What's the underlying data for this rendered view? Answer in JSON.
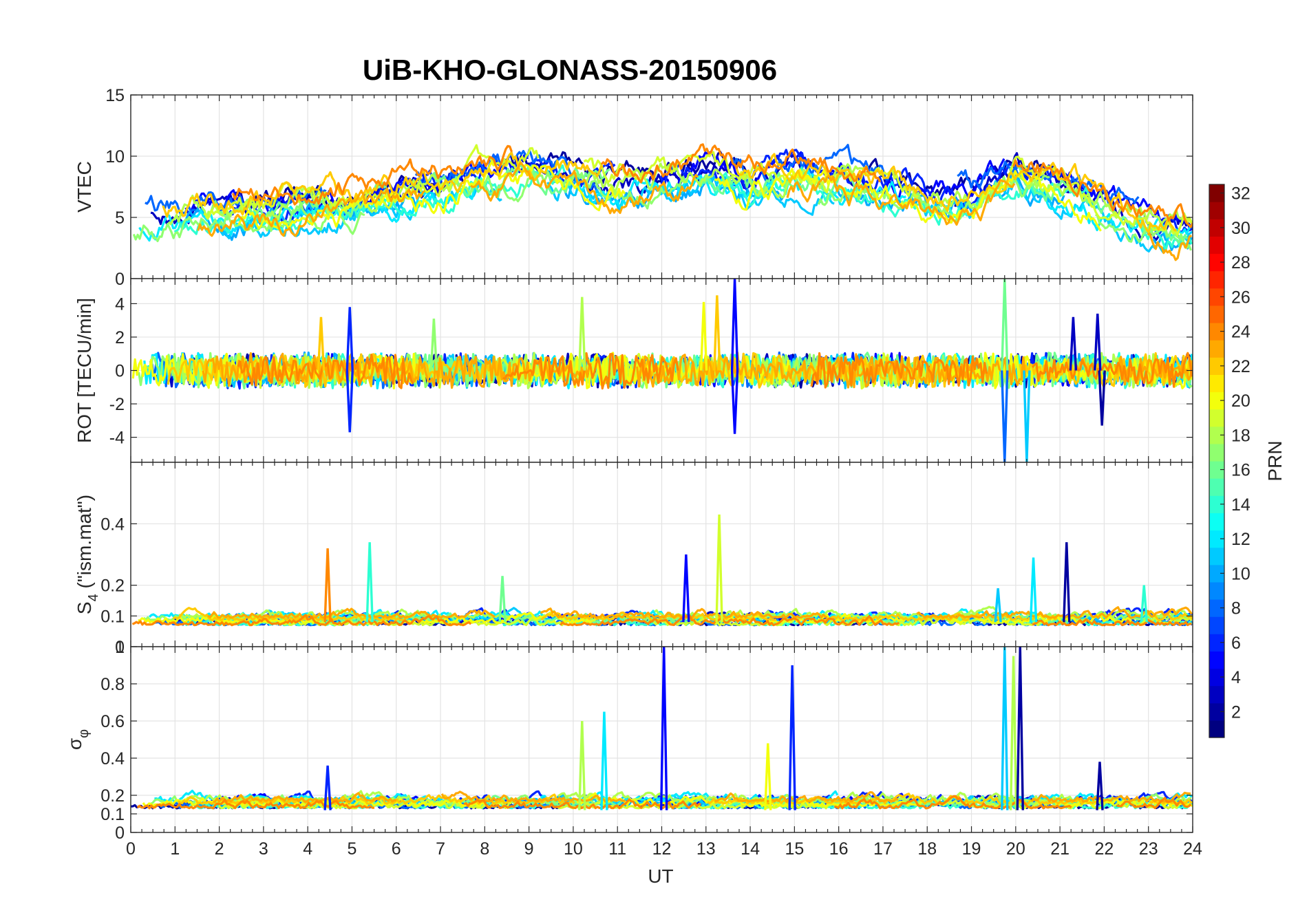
{
  "chart_data": {
    "type": "line",
    "title": "UiB-KHO-GLONASS-20150906",
    "xlabel": "UT",
    "x_range": [
      0,
      24
    ],
    "x_ticks": [
      0,
      1,
      2,
      3,
      4,
      5,
      6,
      7,
      8,
      9,
      10,
      11,
      12,
      13,
      14,
      15,
      16,
      17,
      18,
      19,
      20,
      21,
      22,
      23,
      24
    ],
    "x_tick_labels": [
      "0",
      "1",
      "2",
      "3",
      "4",
      "5",
      "6",
      "7",
      "8",
      "9",
      "10",
      "11",
      "12",
      "13",
      "14",
      "15",
      "16",
      "17",
      "18",
      "19",
      "20",
      "21",
      "22",
      "23",
      "24"
    ],
    "grid": true,
    "panels": [
      {
        "id": "vtec",
        "ylabel": "VTEC",
        "ylim": [
          0,
          15
        ],
        "y_ticks": [
          0,
          5,
          10,
          15
        ],
        "y_tick_labels": [
          "0",
          "5",
          "10",
          "15"
        ],
        "trend": [
          [
            0,
            5
          ],
          [
            1,
            5
          ],
          [
            2,
            5.5
          ],
          [
            3,
            5.5
          ],
          [
            4,
            6
          ],
          [
            5,
            6
          ],
          [
            6,
            7
          ],
          [
            7,
            7.5
          ],
          [
            8,
            8.5
          ],
          [
            9,
            9
          ],
          [
            10,
            8.5
          ],
          [
            11,
            7.5
          ],
          [
            12,
            8
          ],
          [
            13,
            8.5
          ],
          [
            14,
            8
          ],
          [
            15,
            8.5
          ],
          [
            16,
            8
          ],
          [
            17,
            7.5
          ],
          [
            18,
            6.5
          ],
          [
            19,
            6.5
          ],
          [
            20,
            9
          ],
          [
            21,
            7.5
          ],
          [
            22,
            6
          ],
          [
            23,
            4.5
          ],
          [
            24,
            4
          ]
        ],
        "noise": 1.1
      },
      {
        "id": "rot",
        "ylabel": "ROT [TECU/min]",
        "ylim": [
          -5.5,
          5.5
        ],
        "y_ticks": [
          -4,
          -2,
          0,
          2,
          4
        ],
        "y_tick_labels": [
          "-4",
          "-2",
          "0",
          "2",
          "4"
        ],
        "trend": [
          [
            0,
            0
          ],
          [
            24,
            0
          ]
        ],
        "noise": 0.45
      },
      {
        "id": "s4",
        "ylabel": "S4 (\"ism.mat\")",
        "ylabel_main": "S",
        "ylabel_sub": "4",
        "ylabel_rest": " (\"ism.mat\")",
        "ylim": [
          0,
          0.6
        ],
        "y_ticks": [
          0,
          0.1,
          0.2,
          0.4
        ],
        "y_tick_labels": [
          "0",
          "0.1",
          "0.2",
          "0.4"
        ],
        "trend": [
          [
            0,
            0.07
          ],
          [
            24,
            0.07
          ]
        ],
        "noise": 0.02
      },
      {
        "id": "sigma",
        "ylabel": "σφ",
        "ylabel_main": "σ",
        "ylabel_sub": "φ",
        "ylim": [
          0,
          1
        ],
        "y_ticks": [
          0,
          0.1,
          0.2,
          0.4,
          0.6,
          0.8,
          1
        ],
        "y_tick_labels": [
          "0",
          "0.1",
          "0.2",
          "0.4",
          "0.6",
          "0.8",
          "1"
        ],
        "trend": [
          [
            0,
            0.13
          ],
          [
            24,
            0.13
          ]
        ],
        "noise": 0.035
      }
    ],
    "spikes": [
      {
        "panel": "rot",
        "x": 4.95,
        "y": 3.8,
        "prn": 6
      },
      {
        "panel": "rot",
        "x": 4.95,
        "y": -3.7,
        "prn": 6
      },
      {
        "panel": "rot",
        "x": 4.3,
        "y": 3.2,
        "prn": 22
      },
      {
        "panel": "rot",
        "x": 6.85,
        "y": 3.1,
        "prn": 17
      },
      {
        "panel": "rot",
        "x": 10.2,
        "y": 4.4,
        "prn": 18
      },
      {
        "panel": "rot",
        "x": 12.95,
        "y": 4.1,
        "prn": 20
      },
      {
        "panel": "rot",
        "x": 13.25,
        "y": 4.5,
        "prn": 22
      },
      {
        "panel": "rot",
        "x": 13.65,
        "y": 5.5,
        "prn": 5
      },
      {
        "panel": "rot",
        "x": 13.65,
        "y": -3.8,
        "prn": 5
      },
      {
        "panel": "rot",
        "x": 19.75,
        "y": 5.5,
        "prn": 16
      },
      {
        "panel": "rot",
        "x": 19.75,
        "y": -5.5,
        "prn": 8
      },
      {
        "panel": "rot",
        "x": 20.25,
        "y": -5.5,
        "prn": 11
      },
      {
        "panel": "rot",
        "x": 21.3,
        "y": 3.2,
        "prn": 3
      },
      {
        "panel": "rot",
        "x": 21.85,
        "y": 3.4,
        "prn": 3
      },
      {
        "panel": "rot",
        "x": 21.95,
        "y": -3.3,
        "prn": 2
      },
      {
        "panel": "s4",
        "x": 4.45,
        "y": 0.32,
        "prn": 24
      },
      {
        "panel": "s4",
        "x": 5.4,
        "y": 0.34,
        "prn": 14
      },
      {
        "panel": "s4",
        "x": 8.4,
        "y": 0.23,
        "prn": 16
      },
      {
        "panel": "s4",
        "x": 12.55,
        "y": 0.3,
        "prn": 5
      },
      {
        "panel": "s4",
        "x": 13.3,
        "y": 0.43,
        "prn": 19
      },
      {
        "panel": "s4",
        "x": 20.4,
        "y": 0.29,
        "prn": 12
      },
      {
        "panel": "s4",
        "x": 21.15,
        "y": 0.34,
        "prn": 2
      },
      {
        "panel": "s4",
        "x": 19.6,
        "y": 0.19,
        "prn": 11
      },
      {
        "panel": "s4",
        "x": 22.9,
        "y": 0.2,
        "prn": 14
      },
      {
        "panel": "sigma",
        "x": 4.45,
        "y": 0.36,
        "prn": 6
      },
      {
        "panel": "sigma",
        "x": 10.2,
        "y": 0.6,
        "prn": 18
      },
      {
        "panel": "sigma",
        "x": 10.7,
        "y": 0.65,
        "prn": 12
      },
      {
        "panel": "sigma",
        "x": 12.05,
        "y": 1.0,
        "prn": 5
      },
      {
        "panel": "sigma",
        "x": 14.4,
        "y": 0.48,
        "prn": 20
      },
      {
        "panel": "sigma",
        "x": 14.95,
        "y": 0.9,
        "prn": 6
      },
      {
        "panel": "sigma",
        "x": 19.75,
        "y": 1.0,
        "prn": 11
      },
      {
        "panel": "sigma",
        "x": 19.95,
        "y": 0.95,
        "prn": 18
      },
      {
        "panel": "sigma",
        "x": 20.1,
        "y": 1.0,
        "prn": 2
      },
      {
        "panel": "sigma",
        "x": 21.9,
        "y": 0.38,
        "prn": 2
      }
    ],
    "colorbar": {
      "label": "PRN",
      "colormap": "jet",
      "range": [
        1,
        32
      ],
      "ticks": [
        2,
        4,
        6,
        8,
        10,
        12,
        14,
        16,
        18,
        20,
        22,
        24,
        26,
        28,
        30,
        32
      ],
      "tick_labels": [
        "2",
        "4",
        "6",
        "8",
        "10",
        "12",
        "14",
        "16",
        "18",
        "20",
        "22",
        "24",
        "26",
        "28",
        "30",
        "32"
      ]
    },
    "series_prns": [
      2,
      3,
      5,
      6,
      8,
      10,
      11,
      12,
      14,
      16,
      17,
      18,
      19,
      20,
      22,
      23,
      24
    ]
  }
}
